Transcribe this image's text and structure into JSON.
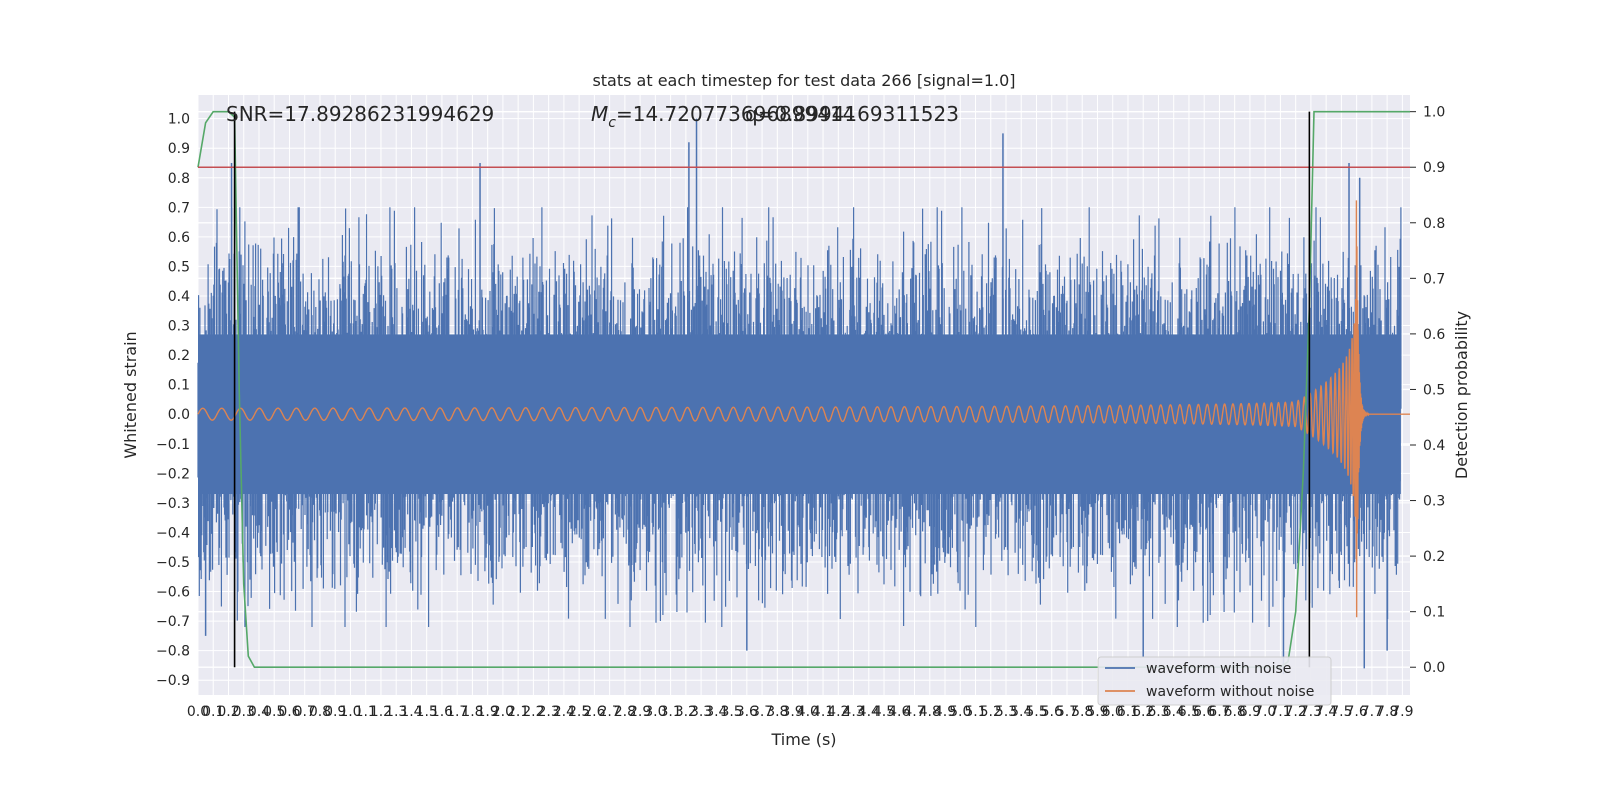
{
  "chart_data": {
    "type": "line",
    "title": "stats at each timestep for test data 266 [signal=1.0]",
    "xlabel": "Time (s)",
    "ylabel": "Whitened strain",
    "y2label": "Detection probability",
    "xlim": [
      0.0,
      7.95
    ],
    "ylim": [
      -0.95,
      1.08
    ],
    "y2lim": [
      -0.05,
      1.03
    ],
    "x_ticks": [
      "0.0",
      "0.1",
      "0.2",
      "0.3",
      "0.4",
      "0.5",
      "0.6",
      "0.7",
      "0.8",
      "0.9",
      "1.0",
      "1.1",
      "1.2",
      "1.3",
      "1.4",
      "1.5",
      "1.6",
      "1.7",
      "1.8",
      "1.9",
      "2.0",
      "2.1",
      "2.2",
      "2.3",
      "2.4",
      "2.5",
      "2.6",
      "2.7",
      "2.8",
      "2.9",
      "3.0",
      "3.1",
      "3.2",
      "3.3",
      "3.4",
      "3.5",
      "3.6",
      "3.7",
      "3.8",
      "3.9",
      "4.0",
      "4.1",
      "4.2",
      "4.3",
      "4.4",
      "4.5",
      "4.6",
      "4.7",
      "4.8",
      "4.9",
      "5.0",
      "5.1",
      "5.2",
      "5.3",
      "5.4",
      "5.5",
      "5.6",
      "5.7",
      "5.8",
      "5.9",
      "6.0",
      "6.1",
      "6.2",
      "6.3",
      "6.4",
      "6.5",
      "6.6",
      "6.7",
      "6.8",
      "6.9",
      "7.0",
      "7.1",
      "7.2",
      "7.3",
      "7.4",
      "7.5",
      "7.6",
      "7.7",
      "7.8",
      "7.9"
    ],
    "y_ticks": [
      "−0.9",
      "−0.8",
      "−0.7",
      "−0.6",
      "−0.5",
      "−0.4",
      "−0.3",
      "−0.2",
      "−0.1",
      "0.0",
      "0.1",
      "0.2",
      "0.3",
      "0.4",
      "0.5",
      "0.6",
      "0.7",
      "0.8",
      "0.9",
      "1.0"
    ],
    "y2_ticks": [
      "0.0",
      "0.1",
      "0.2",
      "0.3",
      "0.4",
      "0.5",
      "0.6",
      "0.7",
      "0.8",
      "0.9",
      "1.0"
    ],
    "annotations": {
      "snr": "SNR=17.89286231994629",
      "mc_prefix": "M",
      "mc_sub": "c",
      "mc_value": "=14.720773696899414",
      "q_value": "q=0.8994169311523"
    },
    "series": [
      {
        "name": "waveform with noise",
        "color": "#4c72b0",
        "description": "noisy whitened strain, approx. uniform envelope",
        "envelope_upper": 0.5,
        "envelope_lower": -0.5,
        "peaks": [
          [
            0.22,
            0.85
          ],
          [
            1.85,
            0.85
          ],
          [
            3.22,
            0.92
          ],
          [
            3.27,
            1.0
          ],
          [
            5.28,
            0.95
          ],
          [
            7.55,
            0.85
          ],
          [
            7.62,
            0.8
          ]
        ],
        "troughs": [
          [
            0.05,
            -0.75
          ],
          [
            3.6,
            -0.8
          ],
          [
            6.2,
            -0.82
          ],
          [
            7.12,
            -0.88
          ],
          [
            7.65,
            -0.86
          ],
          [
            7.8,
            -0.8
          ]
        ]
      },
      {
        "name": "waveform without noise",
        "color": "#dd8452",
        "description": "chirp signal, amplitude grows toward merger",
        "amplitude_start": 0.02,
        "merger_time": 7.6,
        "peak_amplitude": 0.7,
        "ringdown_end": 7.68
      },
      {
        "name": "detection probability",
        "color": "#55a868",
        "axis": "right",
        "x": [
          0.0,
          0.05,
          0.1,
          0.15,
          0.2,
          0.24,
          0.27,
          0.3,
          0.33,
          0.37,
          0.4,
          7.0,
          7.1,
          7.15,
          7.2,
          7.25,
          7.29,
          7.32,
          7.35,
          7.4,
          7.95
        ],
        "y": [
          0.9,
          0.98,
          1.0,
          1.0,
          1.0,
          0.99,
          0.5,
          0.15,
          0.02,
          0.0,
          0.0,
          0.0,
          0.0,
          0.01,
          0.1,
          0.35,
          0.65,
          1.0,
          1.0,
          1.0,
          1.0
        ]
      }
    ],
    "threshold_line": {
      "color": "#c44e52",
      "y2": 0.9
    },
    "vertical_lines": {
      "color": "#000000",
      "x": [
        0.24,
        7.29
      ]
    },
    "legend_placement": "lower-right",
    "grid": true
  }
}
